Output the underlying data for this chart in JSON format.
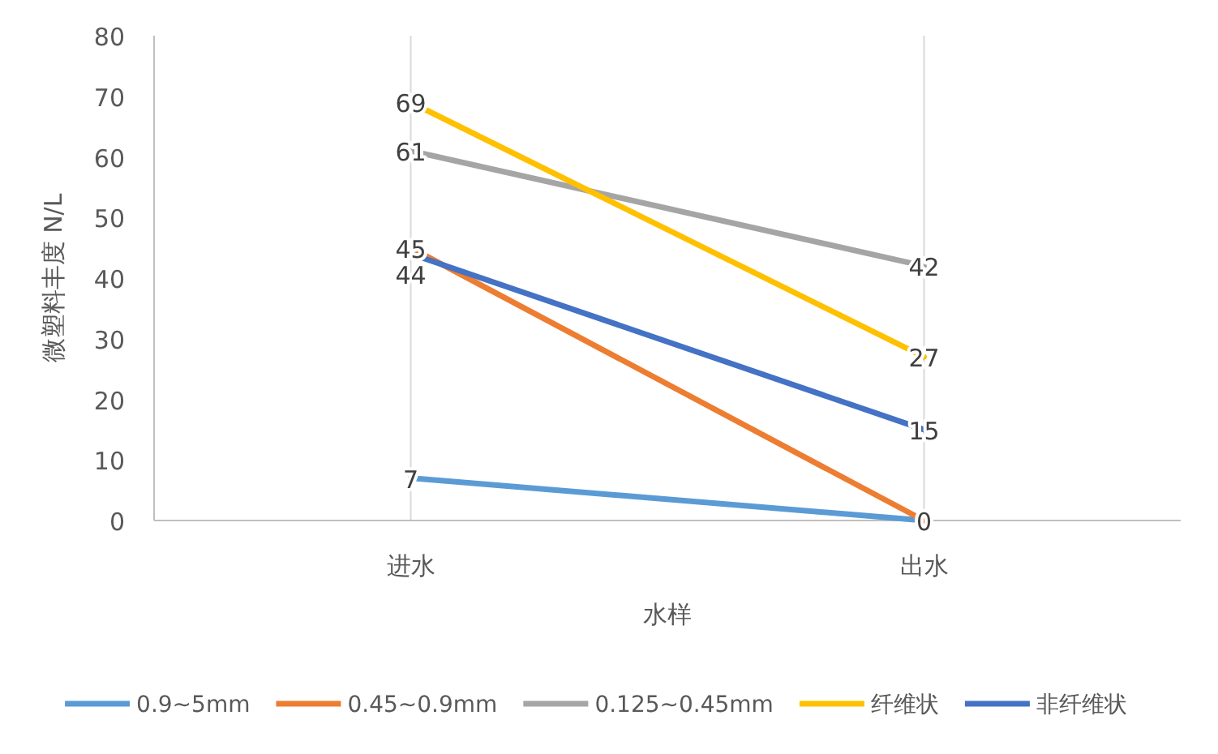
{
  "chart_data": {
    "type": "line",
    "xlabel": "水样",
    "ylabel": "微塑料丰度 N/L",
    "categories": [
      "进水",
      "出水"
    ],
    "series": [
      {
        "name": "0.9~5mm",
        "color": "#5b9bd5",
        "values": [
          7,
          0
        ],
        "value_labels": [
          "7",
          null
        ]
      },
      {
        "name": "0.45~0.9mm",
        "color": "#ed7d31",
        "values": [
          45,
          0
        ],
        "value_labels": [
          "45",
          "0"
        ]
      },
      {
        "name": "0.125~0.45mm",
        "color": "#a5a5a5",
        "values": [
          61,
          42
        ],
        "value_labels": [
          "61",
          "42"
        ]
      },
      {
        "name": "纤维状",
        "color": "#ffc000",
        "values": [
          69,
          27
        ],
        "value_labels": [
          "69",
          "27"
        ]
      },
      {
        "name": "非纤维状",
        "color": "#4472c4",
        "values": [
          44,
          15
        ],
        "value_labels": [
          "44",
          "15"
        ]
      }
    ],
    "ylim": [
      0,
      80
    ],
    "yticks": [
      0,
      10,
      20,
      30,
      40,
      50,
      60,
      70,
      80
    ],
    "grid": "x",
    "legend": "bottom",
    "marker": "none",
    "line_style": "solid"
  }
}
